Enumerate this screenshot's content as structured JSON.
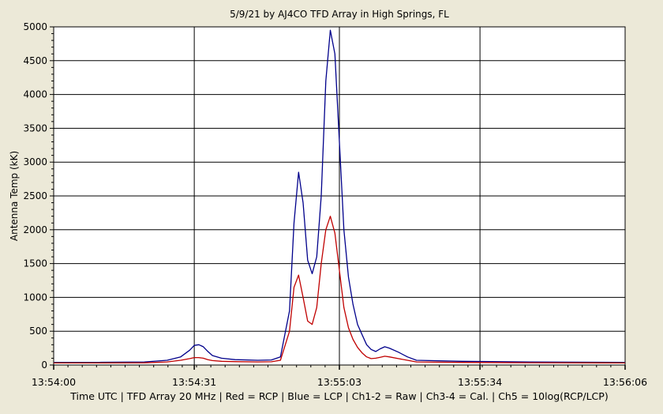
{
  "chart_data": {
    "type": "line",
    "title": "5/9/21  by  AJ4CO TFD Array  in  High Springs, FL",
    "ylabel": "Antenna Temp (kK)",
    "xlabel": "Time UTC  |  TFD Array 20 MHz  |  Red = RCP  |  Blue = LCP  |  Ch1-2 = Raw  |  Ch3-4 = Cal.  |  Ch5 = 10log(RCP/LCP)",
    "ylim": [
      0,
      5000
    ],
    "yticks": [
      "0",
      "500",
      "1000",
      "1500",
      "2000",
      "2500",
      "3000",
      "3500",
      "4000",
      "4500",
      "5000"
    ],
    "xlim": [
      "13:54:00",
      "13:56:06"
    ],
    "xticks": [
      "13:54:00",
      "13:54:31",
      "13:55:03",
      "13:55:34",
      "13:56:06"
    ],
    "grid": true,
    "series": [
      {
        "color": "#00008b",
        "x": [
          "13:54:00",
          "13:54:10",
          "13:54:20",
          "13:54:25",
          "13:54:28",
          "13:54:30",
          "13:54:31",
          "13:54:32",
          "13:54:33",
          "13:54:34",
          "13:54:35",
          "13:54:37",
          "13:54:40",
          "13:54:45",
          "13:54:48",
          "13:54:50",
          "13:54:52",
          "13:54:53",
          "13:54:54",
          "13:54:55",
          "13:54:56",
          "13:54:57",
          "13:54:58",
          "13:54:59",
          "13:55:00",
          "13:55:01",
          "13:55:02",
          "13:55:03",
          "13:55:04",
          "13:55:05",
          "13:55:06",
          "13:55:07",
          "13:55:08",
          "13:55:09",
          "13:55:10",
          "13:55:11",
          "13:55:12",
          "13:55:13",
          "13:55:14",
          "13:55:16",
          "13:55:18",
          "13:55:20",
          "13:55:30",
          "13:55:45",
          "13:56:06"
        ],
        "values": [
          40,
          40,
          45,
          70,
          120,
          220,
          290,
          300,
          270,
          200,
          140,
          100,
          80,
          70,
          75,
          120,
          800,
          2100,
          2850,
          2400,
          1550,
          1350,
          1600,
          2500,
          4200,
          4950,
          4600,
          3300,
          2000,
          1300,
          900,
          600,
          450,
          300,
          230,
          200,
          240,
          270,
          250,
          190,
          120,
          70,
          55,
          45,
          40
        ]
      },
      {
        "color": "#c00000",
        "x": [
          "13:54:00",
          "13:54:10",
          "13:54:20",
          "13:54:25",
          "13:54:28",
          "13:54:30",
          "13:54:31",
          "13:54:32",
          "13:54:33",
          "13:54:34",
          "13:54:35",
          "13:54:37",
          "13:54:40",
          "13:54:45",
          "13:54:48",
          "13:54:50",
          "13:54:52",
          "13:54:53",
          "13:54:54",
          "13:54:55",
          "13:54:56",
          "13:54:57",
          "13:54:58",
          "13:54:59",
          "13:55:00",
          "13:55:01",
          "13:55:02",
          "13:55:03",
          "13:55:04",
          "13:55:05",
          "13:55:06",
          "13:55:07",
          "13:55:08",
          "13:55:09",
          "13:55:10",
          "13:55:11",
          "13:55:12",
          "13:55:13",
          "13:55:14",
          "13:55:16",
          "13:55:18",
          "13:55:20",
          "13:55:30",
          "13:55:45",
          "13:56:06"
        ],
        "values": [
          30,
          30,
          33,
          45,
          70,
          95,
          110,
          110,
          100,
          80,
          65,
          55,
          50,
          45,
          48,
          70,
          500,
          1150,
          1330,
          1000,
          650,
          600,
          850,
          1500,
          2000,
          2200,
          1950,
          1400,
          850,
          550,
          380,
          260,
          180,
          120,
          95,
          100,
          115,
          130,
          120,
          95,
          70,
          45,
          38,
          34,
          30
        ]
      }
    ]
  }
}
